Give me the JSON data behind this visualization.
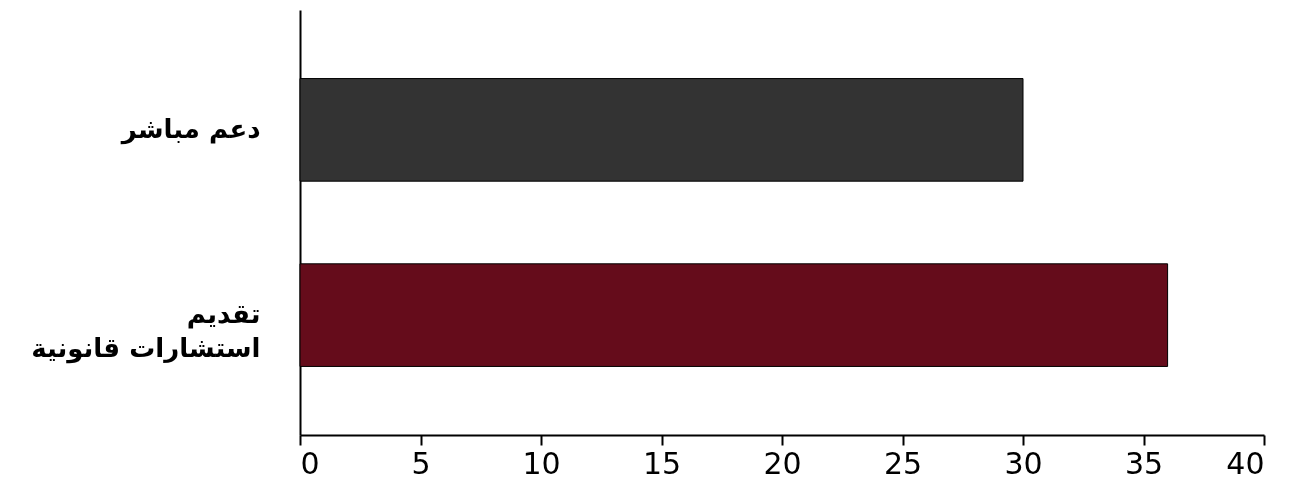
{
  "chart_data": {
    "type": "bar",
    "orientation": "horizontal",
    "categories": [
      "دعم مباشر",
      "تقديم\nاستشارات قانونية"
    ],
    "values": [
      30,
      36
    ],
    "colors": [
      "#333333",
      "#650c1b"
    ],
    "xlim": [
      0,
      40
    ],
    "xticks": [
      0,
      5,
      10,
      15,
      20,
      25,
      30,
      35,
      40
    ],
    "grid": false
  }
}
